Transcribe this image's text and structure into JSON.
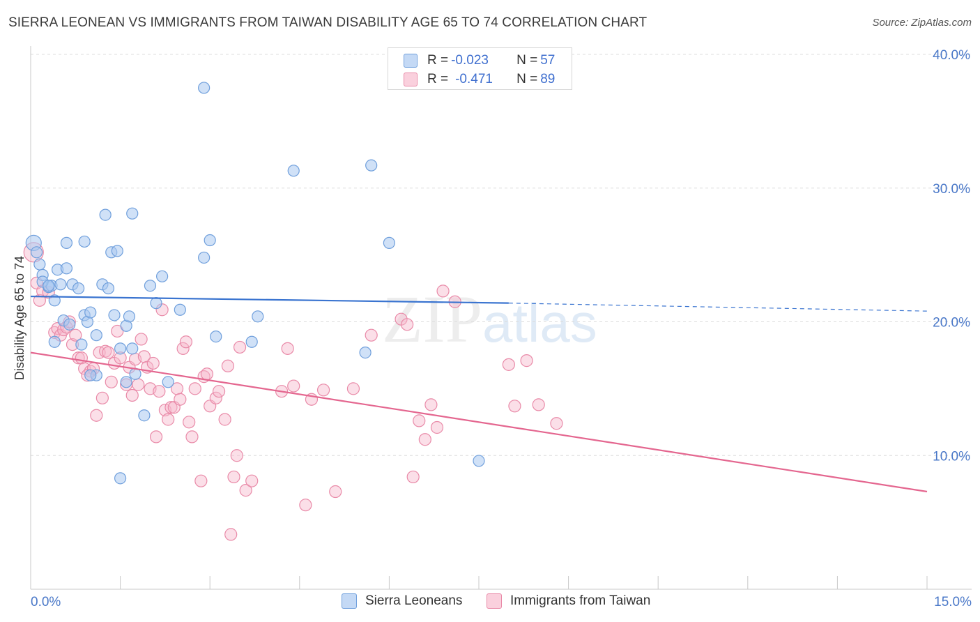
{
  "title": "SIERRA LEONEAN VS IMMIGRANTS FROM TAIWAN DISABILITY AGE 65 TO 74 CORRELATION CHART",
  "source": "Source: ZipAtlas.com",
  "watermark": {
    "zip": "ZIP",
    "atlas": "atlas"
  },
  "legend_top": {
    "row1": {
      "r_label": "R = ",
      "r_value": "-0.023",
      "n_label": "N = ",
      "n_value": "57"
    },
    "row2": {
      "r_label": "R = ",
      "r_value": "-0.471",
      "n_label": "N = ",
      "n_value": "89"
    }
  },
  "legend_bottom": {
    "series1": "Sierra Leoneans",
    "series2": "Immigrants from Taiwan"
  },
  "colors": {
    "blue_fill": "#a9c8f0",
    "blue_stroke": "#6f9fdc",
    "blue_line": "#3a74d0",
    "pink_fill": "#f6b9cc",
    "pink_stroke": "#e98aa8",
    "pink_line": "#e4668f",
    "grid": "#dcdcdc",
    "tick_text": "#4a78c8"
  },
  "chart_data": {
    "type": "scatter",
    "title": "SIERRA LEONEAN VS IMMIGRANTS FROM TAIWAN DISABILITY AGE 65 TO 74 CORRELATION CHART",
    "xlabel": "",
    "ylabel": "Disability Age 65 to 74",
    "xlim": [
      0,
      15
    ],
    "ylim": [
      0,
      40
    ],
    "x_tick_labels": [
      "0.0%",
      "15.0%"
    ],
    "y_ticks": [
      10,
      20,
      30,
      40
    ],
    "y_tick_labels": [
      "10.0%",
      "20.0%",
      "30.0%",
      "40.0%"
    ],
    "grid": true,
    "legend_position": "top-center",
    "series": [
      {
        "name": "Sierra Leoneans",
        "r": -0.023,
        "n": 57,
        "trend": {
          "x0": 0,
          "y0": 21.9,
          "x1": 8.0,
          "y1": 21.4,
          "dash_to_x": 15,
          "dash_to_y": 20.8
        },
        "points": [
          [
            0.05,
            25.9
          ],
          [
            0.1,
            25.2
          ],
          [
            0.15,
            24.3
          ],
          [
            0.2,
            23.5
          ],
          [
            0.3,
            22.6
          ],
          [
            0.35,
            22.7
          ],
          [
            0.4,
            21.6
          ],
          [
            0.2,
            23.0
          ],
          [
            0.45,
            23.9
          ],
          [
            0.5,
            22.8
          ],
          [
            0.6,
            24.0
          ],
          [
            0.7,
            22.8
          ],
          [
            0.8,
            22.5
          ],
          [
            0.9,
            20.5
          ],
          [
            0.95,
            20.0
          ],
          [
            0.85,
            18.3
          ],
          [
            0.55,
            20.1
          ],
          [
            0.65,
            19.8
          ],
          [
            0.4,
            18.5
          ],
          [
            1.0,
            20.7
          ],
          [
            1.1,
            19.0
          ],
          [
            1.2,
            22.8
          ],
          [
            1.1,
            16.0
          ],
          [
            1.3,
            22.5
          ],
          [
            1.25,
            28.0
          ],
          [
            1.35,
            25.2
          ],
          [
            1.45,
            25.3
          ],
          [
            1.4,
            20.5
          ],
          [
            1.5,
            18.0
          ],
          [
            1.6,
            19.7
          ],
          [
            1.65,
            20.4
          ],
          [
            1.7,
            18.0
          ],
          [
            1.6,
            15.5
          ],
          [
            1.75,
            16.1
          ],
          [
            1.5,
            8.3
          ],
          [
            1.9,
            13.0
          ],
          [
            2.0,
            22.7
          ],
          [
            1.7,
            28.1
          ],
          [
            2.1,
            21.4
          ],
          [
            2.2,
            23.4
          ],
          [
            2.3,
            15.5
          ],
          [
            2.5,
            20.9
          ],
          [
            2.9,
            24.8
          ],
          [
            3.0,
            26.1
          ],
          [
            2.9,
            37.5
          ],
          [
            3.1,
            18.9
          ],
          [
            3.7,
            18.5
          ],
          [
            3.8,
            20.4
          ],
          [
            4.4,
            31.3
          ],
          [
            5.7,
            31.7
          ],
          [
            5.6,
            17.7
          ],
          [
            6.0,
            25.9
          ],
          [
            7.5,
            9.6
          ],
          [
            1.0,
            16.0
          ],
          [
            0.3,
            22.7
          ],
          [
            0.6,
            25.9
          ],
          [
            0.9,
            26.0
          ]
        ]
      },
      {
        "name": "Immigrants from Taiwan",
        "r": -0.471,
        "n": 89,
        "trend": {
          "x0": 0,
          "y0": 17.7,
          "x1": 15,
          "y1": 7.3
        },
        "points": [
          [
            0.05,
            25.2
          ],
          [
            0.1,
            22.9
          ],
          [
            0.15,
            21.6
          ],
          [
            0.2,
            22.3
          ],
          [
            0.3,
            22.2
          ],
          [
            0.4,
            19.2
          ],
          [
            0.45,
            19.5
          ],
          [
            0.5,
            19.0
          ],
          [
            0.55,
            19.4
          ],
          [
            0.6,
            19.6
          ],
          [
            0.65,
            20.0
          ],
          [
            0.7,
            18.3
          ],
          [
            0.75,
            19.0
          ],
          [
            0.8,
            17.3
          ],
          [
            0.85,
            17.3
          ],
          [
            0.9,
            16.5
          ],
          [
            1.0,
            16.3
          ],
          [
            1.05,
            16.5
          ],
          [
            0.95,
            16.0
          ],
          [
            1.1,
            13.0
          ],
          [
            1.15,
            17.7
          ],
          [
            1.2,
            14.3
          ],
          [
            1.25,
            17.8
          ],
          [
            1.3,
            17.7
          ],
          [
            1.35,
            15.5
          ],
          [
            1.4,
            16.9
          ],
          [
            1.45,
            19.3
          ],
          [
            1.5,
            17.3
          ],
          [
            1.6,
            15.3
          ],
          [
            1.65,
            16.6
          ],
          [
            1.7,
            14.5
          ],
          [
            1.75,
            17.2
          ],
          [
            1.8,
            15.3
          ],
          [
            1.85,
            18.7
          ],
          [
            1.9,
            17.4
          ],
          [
            1.95,
            16.6
          ],
          [
            2.0,
            15.0
          ],
          [
            2.05,
            16.9
          ],
          [
            2.1,
            11.4
          ],
          [
            2.15,
            14.8
          ],
          [
            2.2,
            20.9
          ],
          [
            2.25,
            13.4
          ],
          [
            2.3,
            12.7
          ],
          [
            2.35,
            13.6
          ],
          [
            2.4,
            13.6
          ],
          [
            2.45,
            15.0
          ],
          [
            2.5,
            14.2
          ],
          [
            2.55,
            18.0
          ],
          [
            2.6,
            18.5
          ],
          [
            2.65,
            12.5
          ],
          [
            2.7,
            11.4
          ],
          [
            2.75,
            15.0
          ],
          [
            2.85,
            8.1
          ],
          [
            2.9,
            15.9
          ],
          [
            2.95,
            16.1
          ],
          [
            3.0,
            13.7
          ],
          [
            3.1,
            14.3
          ],
          [
            3.15,
            14.8
          ],
          [
            3.25,
            12.7
          ],
          [
            3.3,
            16.7
          ],
          [
            3.35,
            4.1
          ],
          [
            3.4,
            8.4
          ],
          [
            3.45,
            10.0
          ],
          [
            3.5,
            18.1
          ],
          [
            3.6,
            7.4
          ],
          [
            3.7,
            8.1
          ],
          [
            4.2,
            14.8
          ],
          [
            4.3,
            18.0
          ],
          [
            4.4,
            15.2
          ],
          [
            4.6,
            6.3
          ],
          [
            4.7,
            14.2
          ],
          [
            4.9,
            14.9
          ],
          [
            5.1,
            7.3
          ],
          [
            5.4,
            15.0
          ],
          [
            5.7,
            19.0
          ],
          [
            6.2,
            20.2
          ],
          [
            6.3,
            19.8
          ],
          [
            6.4,
            8.4
          ],
          [
            6.5,
            12.6
          ],
          [
            6.6,
            11.2
          ],
          [
            6.7,
            13.8
          ],
          [
            6.8,
            12.1
          ],
          [
            6.9,
            22.3
          ],
          [
            7.1,
            21.5
          ],
          [
            8.0,
            16.8
          ],
          [
            8.1,
            13.7
          ],
          [
            8.3,
            17.1
          ],
          [
            8.5,
            13.8
          ],
          [
            8.8,
            12.4
          ]
        ]
      }
    ]
  }
}
